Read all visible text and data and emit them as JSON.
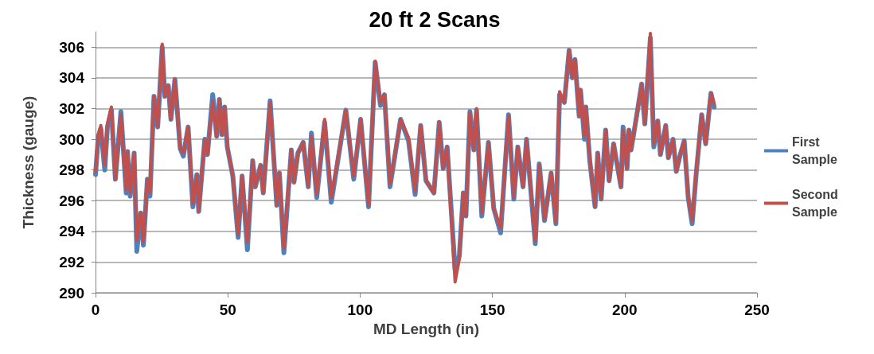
{
  "chart_data": {
    "type": "line",
    "title": "20 ft 2 Scans",
    "xlabel": "MD Length (in)",
    "ylabel": "Thickness (gauge)",
    "x": [
      0,
      1,
      2,
      3.5,
      4.5,
      6,
      7.5,
      9.6,
      11.6,
      12.1,
      13.1,
      14.6,
      15.6,
      17.1,
      18.1,
      19.6,
      20.6,
      22.1,
      23.5,
      25.2,
      26.2,
      27.5,
      28.5,
      30,
      32,
      33.2,
      35,
      36.8,
      38.3,
      39,
      41.3,
      42.3,
      44.3,
      45.8,
      46.8,
      47.8,
      48.8,
      49.8,
      51.9,
      53.9,
      55.4,
      57.4,
      59.4,
      60.4,
      62.4,
      63.4,
      66,
      68.5,
      69.5,
      71.2,
      74,
      75,
      76.5,
      78.5,
      80.4,
      81.6,
      83.6,
      86.6,
      89.1,
      94.6,
      97.6,
      100.2,
      103.2,
      105.7,
      107.7,
      109.2,
      111.3,
      115.3,
      118.3,
      120.8,
      122.9,
      124.9,
      127.9,
      129.9,
      131.4,
      132.9,
      135.9,
      137.5,
      139,
      140,
      141.5,
      143,
      144,
      146,
      148.5,
      150.5,
      153.1,
      156.1,
      158.1,
      159.6,
      161.6,
      162.9,
      166.2,
      167.7,
      169.7,
      172.2,
      174,
      175.4,
      177.2,
      179,
      180.2,
      181.2,
      182.8,
      183.3,
      184.8,
      185.3,
      186.8,
      188.8,
      189.8,
      191.1,
      192.8,
      194.1,
      195.8,
      198.6,
      199.4,
      200.9,
      201.6,
      202.4,
      204.4,
      206.4,
      207.6,
      209.7,
      211,
      212.5,
      213.5,
      215.5,
      216.5,
      218.3,
      219.5,
      221,
      222.5,
      224,
      225.5,
      227,
      229.1,
      230.6,
      232.6,
      233.8
    ],
    "series": [
      {
        "name": "First Sample",
        "color": "#4f81bd",
        "values": [
          297.7,
          300.1,
          300.7,
          298,
          300.8,
          301.9,
          297.4,
          301.8,
          296.5,
          299.2,
          296.3,
          299.1,
          292.7,
          295.2,
          293.1,
          297.4,
          296.3,
          302.8,
          300.8,
          306,
          302.8,
          303.5,
          301.3,
          303.9,
          299.4,
          298.9,
          300.8,
          295.6,
          297.7,
          295.3,
          300,
          299,
          302.9,
          300.2,
          302.6,
          300.3,
          302.1,
          299.5,
          297.6,
          293.6,
          297.6,
          292.8,
          298.6,
          296.9,
          298.3,
          296.5,
          302.5,
          295.7,
          297.8,
          292.6,
          299.3,
          297.2,
          299.1,
          299.8,
          296.9,
          300.4,
          296.2,
          301.1,
          295.9,
          301.9,
          297.4,
          301.3,
          295.6,
          305,
          302.2,
          302.9,
          296.9,
          301.3,
          299.9,
          296.4,
          300.9,
          297.3,
          296.5,
          301.1,
          298.1,
          299.5,
          291.5,
          292.4,
          296.5,
          295,
          301.8,
          299.3,
          301.9,
          295,
          299.8,
          295.5,
          293.9,
          301.6,
          296.1,
          299.5,
          296.9,
          300,
          293.2,
          298.4,
          294.7,
          297.8,
          294.5,
          302.9,
          302.4,
          305.8,
          304,
          305.2,
          301.5,
          303.2,
          300,
          302.1,
          298.6,
          295.6,
          299.1,
          296.1,
          300.6,
          297.3,
          299.7,
          296.9,
          300.8,
          298.1,
          300.6,
          299.3,
          301.4,
          303.6,
          301,
          306.6,
          299.5,
          301.2,
          299,
          300.9,
          298.8,
          300,
          297.9,
          299,
          299.9,
          296.2,
          294.5,
          297.7,
          301.6,
          299.7,
          303,
          302.1
        ]
      },
      {
        "name": "Second Sample",
        "color": "#c0504d",
        "values": [
          297.9,
          300.3,
          300.9,
          298.3,
          301,
          302.1,
          297.4,
          301.6,
          296.7,
          299.2,
          296.5,
          299.1,
          293.4,
          295.2,
          293.3,
          297.4,
          296.5,
          302.8,
          300.8,
          306.2,
          302.8,
          303.5,
          301.3,
          303.9,
          299.4,
          299.1,
          300.8,
          295.8,
          297.7,
          295.3,
          300,
          299,
          302.5,
          300.2,
          302.6,
          300.3,
          302.1,
          299.5,
          297.6,
          293.8,
          297.6,
          293.3,
          298.6,
          296.9,
          298.3,
          296.5,
          302.4,
          295.7,
          297.8,
          292.9,
          299.3,
          297.2,
          299.1,
          299.8,
          296.9,
          300.2,
          296.4,
          301.3,
          296.2,
          301.9,
          297.6,
          301.3,
          295.7,
          305.1,
          302.4,
          302.9,
          297.1,
          301.3,
          300.1,
          296.6,
          300.9,
          297.3,
          296.5,
          301.1,
          298.1,
          299.5,
          290.7,
          292.2,
          296.5,
          295,
          301.7,
          299.3,
          302,
          295.2,
          299.8,
          295.5,
          294.2,
          301.5,
          296.2,
          299.5,
          296.9,
          300,
          293.4,
          298.3,
          294.8,
          297.8,
          294.6,
          303.1,
          302.4,
          305.8,
          304,
          305.2,
          301.5,
          303.2,
          300.2,
          302.1,
          298.8,
          295.6,
          299.1,
          296.1,
          300.6,
          297.3,
          299.7,
          296.9,
          300.6,
          298.1,
          300.6,
          299.3,
          301.4,
          303.6,
          301,
          306.9,
          299.7,
          301.2,
          299,
          300.9,
          298.8,
          300,
          297.9,
          299,
          299.9,
          296.2,
          294.7,
          297.9,
          301.6,
          299.7,
          303,
          302.3
        ]
      }
    ],
    "xlim": [
      0,
      250
    ],
    "xticks": [
      0,
      50,
      100,
      150,
      200,
      250
    ],
    "ylim": [
      290,
      307
    ],
    "yticks": [
      290,
      292,
      294,
      296,
      298,
      300,
      302,
      304,
      306
    ],
    "grid": "y",
    "legend": "right",
    "marker": "none",
    "line_style": "solid"
  }
}
